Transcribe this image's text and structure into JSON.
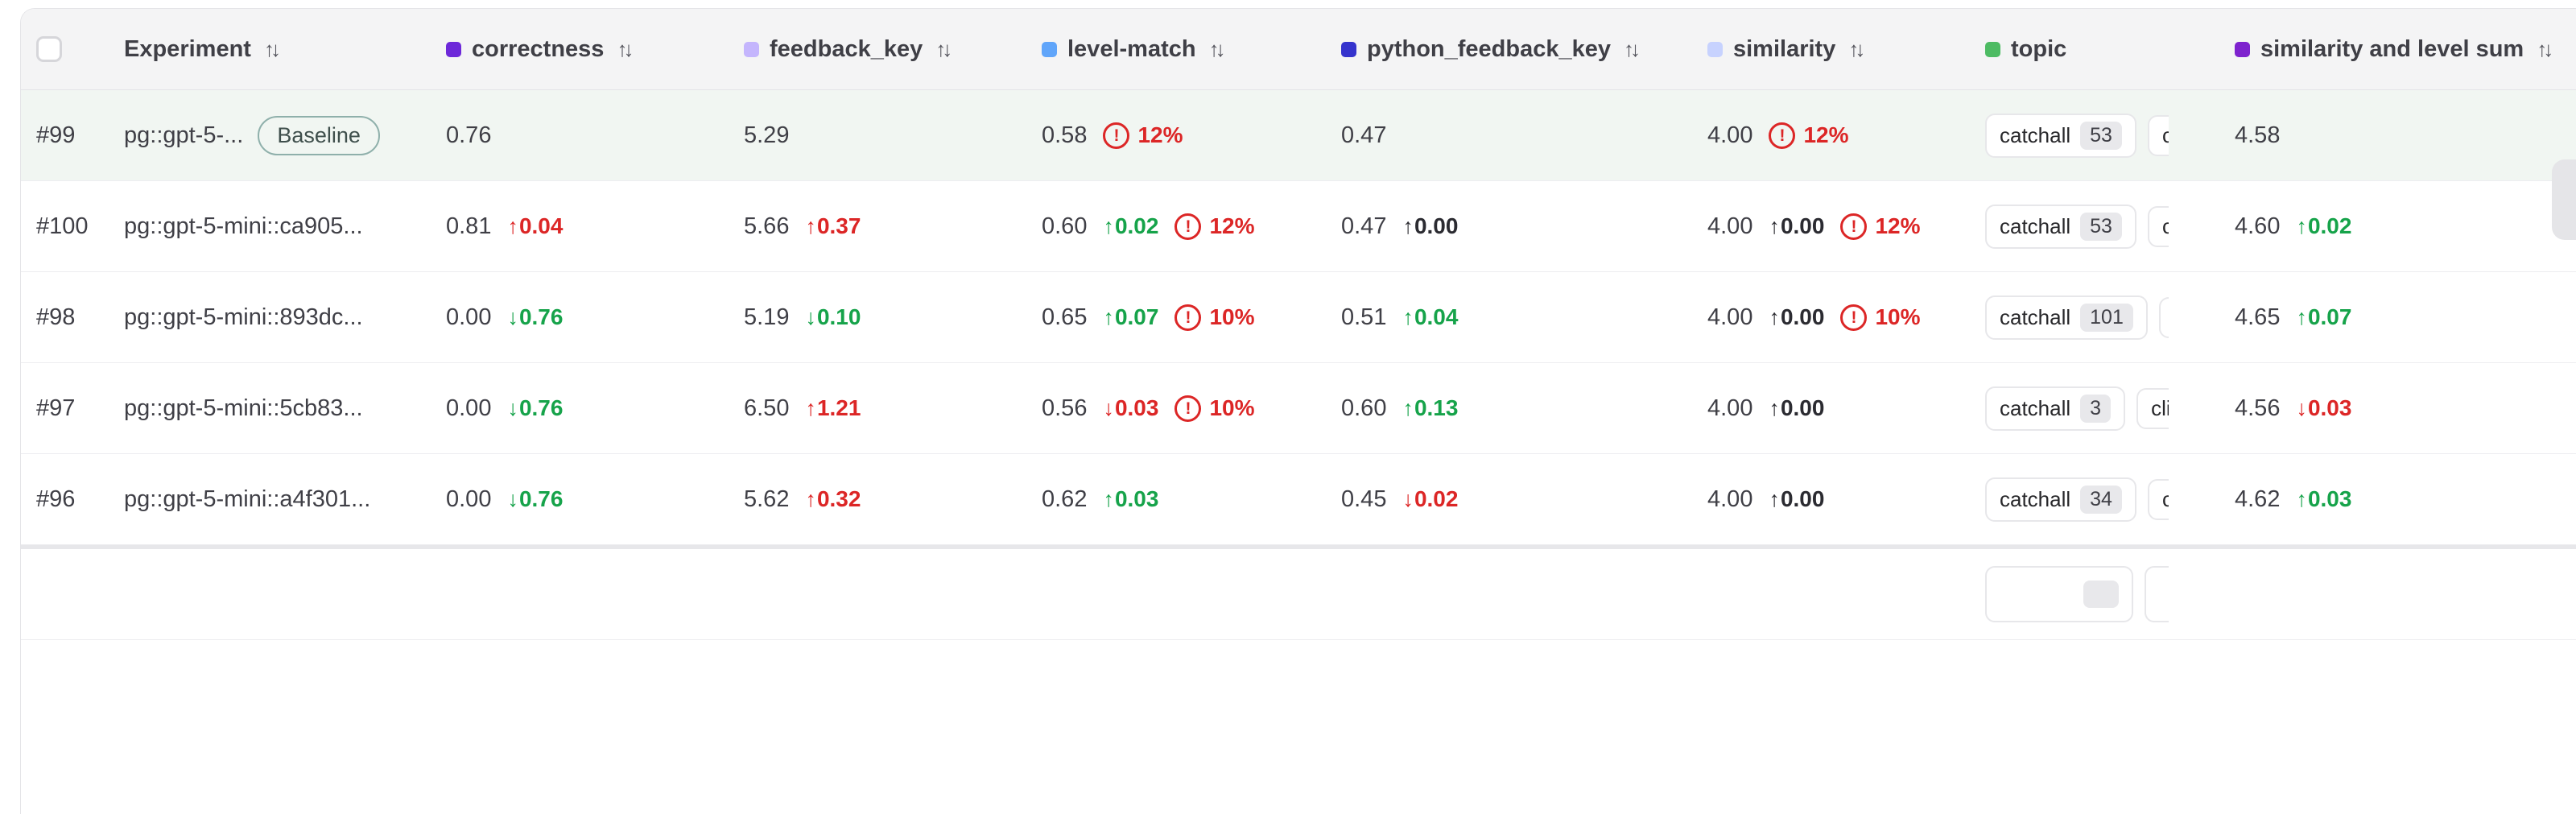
{
  "header": {
    "experiment_label": "Experiment",
    "columns": [
      {
        "key": "correctness",
        "label": "correctness",
        "color": "#6d28d9",
        "sort": true
      },
      {
        "key": "feedback_key",
        "label": "feedback_key",
        "color": "#c4b5fd",
        "sort": true
      },
      {
        "key": "level_match",
        "label": "level-match",
        "color": "#60a5fa",
        "sort": true
      },
      {
        "key": "python_feedback_key",
        "label": "python_feedback_key",
        "color": "#3533cd",
        "sort": true
      },
      {
        "key": "similarity",
        "label": "similarity",
        "color": "#c7d2fe",
        "sort": true
      },
      {
        "key": "topic",
        "label": "topic",
        "color": "#4dbb63",
        "sort": false
      },
      {
        "key": "sum",
        "label": "similarity and level sum",
        "color": "#7e22ce",
        "sort": true
      }
    ]
  },
  "palette": {
    "improve": "#16a34a",
    "regress": "#dc2626",
    "neutral": "#2b2b31",
    "baseline_row_bg": "#f1f6f2"
  },
  "rows": [
    {
      "id": "#99",
      "experiment": "pg::gpt-5-...",
      "baseline": true,
      "baseline_label": "Baseline",
      "cells": {
        "correctness": {
          "v": "0.76"
        },
        "feedback_key": {
          "v": "5.29"
        },
        "level_match": {
          "v": "0.58",
          "warn": "12%"
        },
        "python_feedback_key": {
          "v": "0.47"
        },
        "similarity": {
          "v": "4.00",
          "warn": "12%"
        },
        "sum": {
          "v": "4.58"
        }
      },
      "topics": [
        {
          "label": "catchall",
          "count": "53"
        },
        {
          "label": "c",
          "truncated": true
        }
      ]
    },
    {
      "id": "#100",
      "experiment": "pg::gpt-5-mini::ca905...",
      "baseline": false,
      "cells": {
        "correctness": {
          "v": "0.81",
          "d": "0.04",
          "dir": "up",
          "tone": "red"
        },
        "feedback_key": {
          "v": "5.66",
          "d": "0.37",
          "dir": "up",
          "tone": "red"
        },
        "level_match": {
          "v": "0.60",
          "d": "0.02",
          "dir": "up",
          "tone": "green",
          "warn": "12%"
        },
        "python_feedback_key": {
          "v": "0.47",
          "d": "0.00",
          "dir": "up",
          "tone": "neutral"
        },
        "similarity": {
          "v": "4.00",
          "d": "0.00",
          "dir": "up",
          "tone": "neutral",
          "warn": "12%"
        },
        "sum": {
          "v": "4.60",
          "d": "0.02",
          "dir": "up",
          "tone": "green"
        }
      },
      "topics": [
        {
          "label": "catchall",
          "count": "53"
        },
        {
          "label": "c",
          "truncated": true
        }
      ]
    },
    {
      "id": "#98",
      "experiment": "pg::gpt-5-mini::893dc...",
      "baseline": false,
      "cells": {
        "correctness": {
          "v": "0.00",
          "d": "0.76",
          "dir": "down",
          "tone": "green"
        },
        "feedback_key": {
          "v": "5.19",
          "d": "0.10",
          "dir": "down",
          "tone": "green"
        },
        "level_match": {
          "v": "0.65",
          "d": "0.07",
          "dir": "up",
          "tone": "green",
          "warn": "10%"
        },
        "python_feedback_key": {
          "v": "0.51",
          "d": "0.04",
          "dir": "up",
          "tone": "green"
        },
        "similarity": {
          "v": "4.00",
          "d": "0.00",
          "dir": "up",
          "tone": "neutral",
          "warn": "10%"
        },
        "sum": {
          "v": "4.65",
          "d": "0.07",
          "dir": "up",
          "tone": "green"
        }
      },
      "topics": [
        {
          "label": "catchall",
          "count": "101"
        },
        {
          "label": "c",
          "truncated": true
        }
      ]
    },
    {
      "id": "#97",
      "experiment": "pg::gpt-5-mini::5cb83...",
      "baseline": false,
      "cells": {
        "correctness": {
          "v": "0.00",
          "d": "0.76",
          "dir": "down",
          "tone": "green"
        },
        "feedback_key": {
          "v": "6.50",
          "d": "1.21",
          "dir": "up",
          "tone": "red"
        },
        "level_match": {
          "v": "0.56",
          "d": "0.03",
          "dir": "down",
          "tone": "red",
          "warn": "10%"
        },
        "python_feedback_key": {
          "v": "0.60",
          "d": "0.13",
          "dir": "up",
          "tone": "green"
        },
        "similarity": {
          "v": "4.00",
          "d": "0.00",
          "dir": "up",
          "tone": "neutral"
        },
        "sum": {
          "v": "4.56",
          "d": "0.03",
          "dir": "down",
          "tone": "red"
        }
      },
      "topics": [
        {
          "label": "catchall",
          "count": "3"
        },
        {
          "label": "cli",
          "truncated": true
        }
      ]
    },
    {
      "id": "#96",
      "experiment": "pg::gpt-5-mini::a4f301...",
      "baseline": false,
      "cells": {
        "correctness": {
          "v": "0.00",
          "d": "0.76",
          "dir": "down",
          "tone": "green"
        },
        "feedback_key": {
          "v": "5.62",
          "d": "0.32",
          "dir": "up",
          "tone": "red"
        },
        "level_match": {
          "v": "0.62",
          "d": "0.03",
          "dir": "up",
          "tone": "green"
        },
        "python_feedback_key": {
          "v": "0.45",
          "d": "0.02",
          "dir": "down",
          "tone": "red"
        },
        "similarity": {
          "v": "4.00",
          "d": "0.00",
          "dir": "up",
          "tone": "neutral"
        },
        "sum": {
          "v": "4.62",
          "d": "0.03",
          "dir": "up",
          "tone": "green"
        }
      },
      "topics": [
        {
          "label": "catchall",
          "count": "34"
        },
        {
          "label": "c",
          "truncated": true
        }
      ]
    }
  ],
  "partial_row": {
    "id": "",
    "experiment": "",
    "baseline": false,
    "cells": {},
    "topics": [
      {
        "label": "",
        "count": "",
        "ghost": true
      },
      {
        "label": "",
        "ghost": true,
        "truncated": true
      }
    ]
  }
}
